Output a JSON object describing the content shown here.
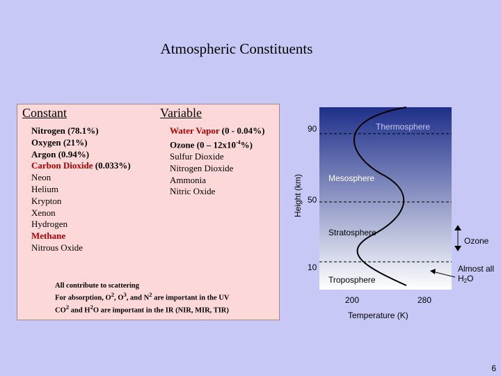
{
  "slide": {
    "title": "Atmospheric Constituents",
    "page_number": "6"
  },
  "constant": {
    "heading": "Constant",
    "items": [
      {
        "text": "Nitrogen (78.1%)",
        "bold": true,
        "red": false
      },
      {
        "text": "Oxygen (21%)",
        "bold": true,
        "red": false
      },
      {
        "text": "Argon (0.94%)",
        "bold": true,
        "red": false
      },
      {
        "text": "Carbon Dioxide",
        "suffix": " (0.033%)",
        "bold": true,
        "red": true
      },
      {
        "text": "Neon",
        "bold": false,
        "red": false
      },
      {
        "text": "Helium",
        "bold": false,
        "red": false
      },
      {
        "text": "Krypton",
        "bold": false,
        "red": false
      },
      {
        "text": "Xenon",
        "bold": false,
        "red": false
      },
      {
        "text": "Hydrogen",
        "bold": false,
        "red": false
      },
      {
        "text": "Methane",
        "bold": true,
        "red": true
      },
      {
        "text": "Nitrous Oxide",
        "bold": false,
        "red": false
      }
    ]
  },
  "variable": {
    "heading": "Variable",
    "items": [
      {
        "text": "Water Vapor",
        "suffix": " (0 - 0.04%)",
        "bold": true,
        "red": true
      },
      {
        "text": "Ozone (0 – 12x10",
        "sup": "-4",
        "suffix": "%)",
        "bold": true,
        "red": false
      },
      {
        "text": "Sulfur Dioxide",
        "bold": false,
        "red": false
      },
      {
        "text": "Nitrogen Dioxide",
        "bold": false,
        "red": false
      },
      {
        "text": "Ammonia",
        "bold": false,
        "red": false
      },
      {
        "text": "Nitric Oxide",
        "bold": false,
        "red": false
      }
    ]
  },
  "notes": {
    "line1": "All contribute to scattering",
    "line2_a": "For absorption, O",
    "line2_s1": "2",
    "line2_b": ", O",
    "line2_s2": "3",
    "line2_c": ", and N",
    "line2_s3": "2",
    "line2_d": " are important in the UV",
    "line3_a": "CO",
    "line3_s1": "2",
    "line3_b": " and H",
    "line3_s2": "2",
    "line3_c": "O are important in the IR (NIR, MIR, TIR)"
  },
  "figure": {
    "y_axis_label": "Height (km)",
    "x_axis_label": "Temperature (K)",
    "y_ticks": [
      "90",
      "50",
      "10"
    ],
    "x_ticks": [
      "200",
      "280"
    ],
    "layers": [
      "Thermosphere",
      "Mesosphere",
      "Stratosphere",
      "Troposphere"
    ],
    "ozone_label": "Ozone",
    "almost_all_label": "Almost all",
    "h2o_label": "H",
    "h2o_sub": "2",
    "h2o_tail": "O",
    "colors": {
      "top": "#1e2f8a",
      "bottom": "#ffffff",
      "curve": "#000000"
    }
  }
}
